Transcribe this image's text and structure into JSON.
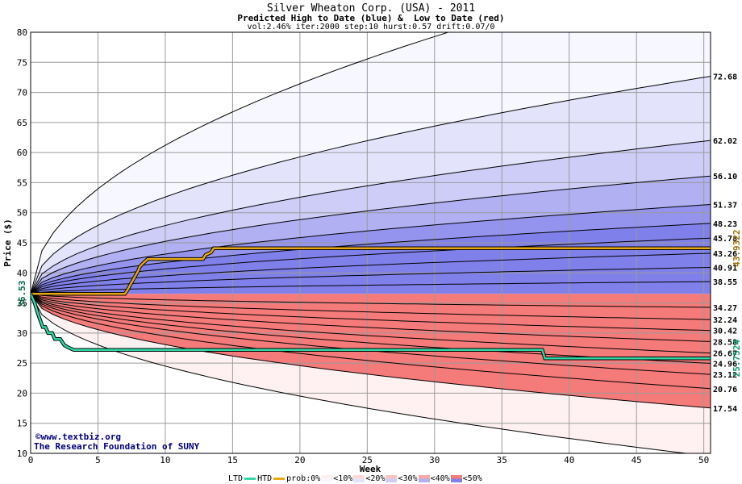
{
  "title": "Silver Wheaton Corp. (USA) - 2011",
  "subtitle": "Predicted High to Date (blue) &  Low to Date (red)",
  "params": "vol:2.46% iter:2000 step:10 hurst:0.57 drift:0.07/0",
  "watermark": {
    "line1": "©www.textbiz.org",
    "line2": "The Research Foundation of SUNY"
  },
  "legend": {
    "ltd": "LTD",
    "htd": "HTD",
    "prob": "prob:0%",
    "bands": [
      "<10%",
      "<20%",
      "<30%",
      "<40%",
      "<50%"
    ]
  },
  "colors": {
    "ltd_line": "#2dd9a6",
    "htd_line": "#e8a817",
    "blue_bands": [
      "#f7f7ff",
      "#e3e3fc",
      "#cdcdf8",
      "#b0b0f3",
      "#9494ef",
      "#8080ea"
    ],
    "red_bands": [
      "#fff1f1",
      "#fddada",
      "#fbc4c4",
      "#f9aaaa",
      "#f78e8e",
      "#f57a7a"
    ]
  },
  "chart_data": {
    "type": "line",
    "xlabel": "Week",
    "ylabel": "Price ($)",
    "xlim": [
      0,
      50.5
    ],
    "ylim": [
      10,
      80
    ],
    "xticks": [
      0,
      5,
      10,
      15,
      20,
      25,
      30,
      35,
      40,
      45,
      50
    ],
    "yticks": [
      10,
      15,
      20,
      25,
      30,
      35,
      40,
      45,
      50,
      55,
      60,
      65,
      70,
      75,
      80
    ],
    "grid": true,
    "start_price": 36.53,
    "start_label": "36.53",
    "high_quantiles_end": [
      72.68,
      62.02,
      56.1,
      51.37,
      48.23,
      45.78,
      43.26,
      40.91,
      38.55
    ],
    "low_quantiles_end": [
      34.27,
      32.24,
      30.42,
      28.58,
      26.67,
      24.96,
      23.12,
      20.76,
      17.54
    ],
    "outer_high_end": 92,
    "outer_low_end": 9.5,
    "right_labels": [
      "72.68",
      "62.02",
      "56.10",
      "51.37",
      "48.23",
      "45.78",
      "43.26",
      "40.91",
      "38.55",
      "34.27",
      "32.24",
      "30.42",
      "28.58",
      "26.67",
      "24.96",
      "23.12",
      "20.76",
      "17.54"
    ],
    "htd_series": {
      "name": "HTD",
      "x": [
        0,
        7,
        7.2,
        7.4,
        7.6,
        7.8,
        8.0,
        8.1,
        8.3,
        8.5,
        8.7,
        12.8,
        13.0,
        13.4,
        13.6,
        50.5
      ],
      "y": [
        36.53,
        36.53,
        37.2,
        38.0,
        38.8,
        39.6,
        40.4,
        41.0,
        41.5,
        41.9,
        42.3,
        42.3,
        43.0,
        43.4,
        44.1,
        44.1
      ],
      "end_label": "43.9322"
    },
    "ltd_series": {
      "name": "LTD",
      "x": [
        0,
        0.3,
        0.5,
        0.7,
        0.9,
        1.1,
        1.3,
        1.6,
        1.8,
        2.2,
        2.5,
        2.8,
        3.2,
        38.0,
        38.2,
        50.5
      ],
      "y": [
        36.53,
        35.0,
        33.5,
        32.2,
        31.0,
        31.0,
        30.0,
        30.0,
        29.0,
        29.0,
        28.0,
        27.6,
        27.2,
        27.2,
        25.8,
        25.8
      ],
      "end_label": "25.7524"
    }
  }
}
